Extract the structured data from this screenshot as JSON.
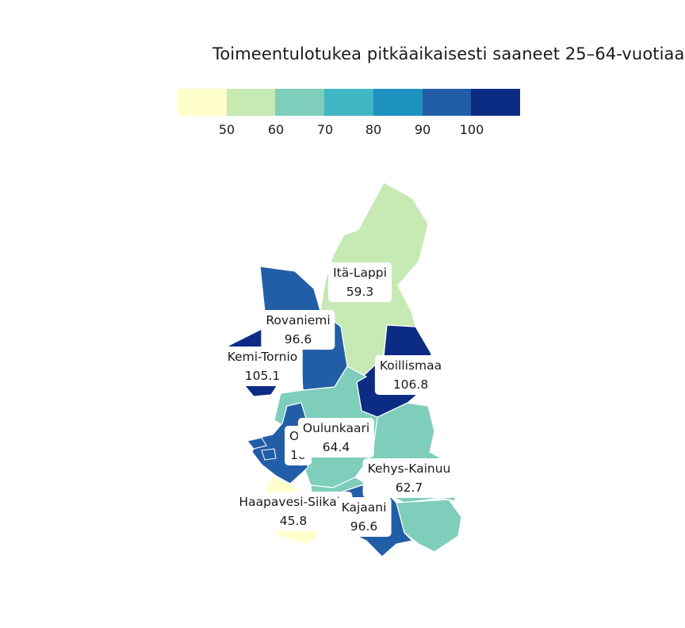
{
  "title": "Toimeentulotukea pitkäaikaisesti saaneet 25–64-vuotiaat",
  "legend": {
    "colors": [
      "#ffffcc",
      "#c7e9b4",
      "#7fcdbb",
      "#41b6c4",
      "#1d91c0",
      "#225ea8",
      "#0c2c84"
    ],
    "ticks": [
      "50",
      "60",
      "70",
      "80",
      "90",
      "100"
    ]
  },
  "regions": [
    {
      "name": "Itä-Lappi",
      "value": "59.3"
    },
    {
      "name": "Rovaniemi",
      "value": "96.6"
    },
    {
      "name": "Kemi-Tornio",
      "value": "105.1"
    },
    {
      "name": "Koillismaa",
      "value": "106.8"
    },
    {
      "name": "Oulunkaari",
      "value": "64.4"
    },
    {
      "name": "Ou",
      "value": "10"
    },
    {
      "name": "Kehys-Kainuu",
      "value": "62.7"
    },
    {
      "name": "Haapavesi-Siikala",
      "value": "45.8"
    },
    {
      "name": "Kajaani",
      "value": "96.6"
    }
  ]
}
